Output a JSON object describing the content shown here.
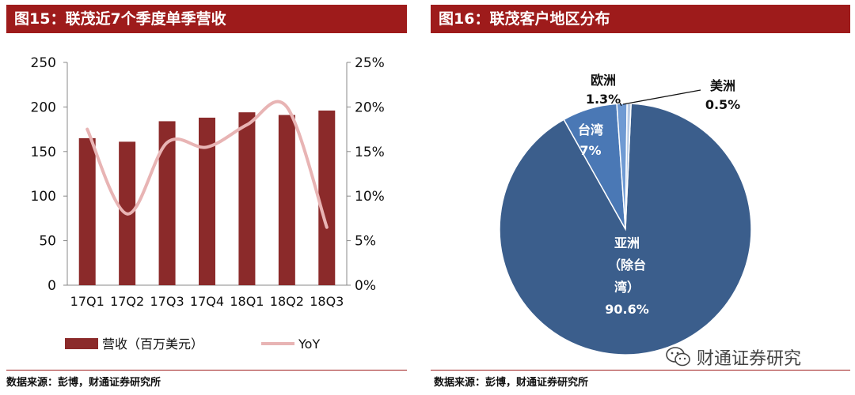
{
  "left_panel": {
    "title": "图15：联茂近7个季度单季营收",
    "source": "数据来源：彭博，财通证券研究所"
  },
  "right_panel": {
    "title": "图16：联茂客户地区分布",
    "source": "数据来源：彭博，财通证券研究所"
  },
  "watermark": {
    "text": "财通证券研究"
  },
  "colors": {
    "header": "#9e1b1b",
    "bar": "#8b2a2a",
    "line": "#e8b4b4",
    "pie_main": "#3b5e8c",
    "pie_taiwan": "#4a78b5",
    "pie_europe": "#6f9ad3",
    "pie_us": "#b8cbe6"
  },
  "chart_data": [
    {
      "type": "bar",
      "categories": [
        "17Q1",
        "17Q2",
        "17Q3",
        "17Q4",
        "18Q1",
        "18Q2",
        "18Q3"
      ],
      "series": [
        {
          "name": "营收（百万美元）",
          "type": "bar",
          "axis": "left",
          "values": [
            165,
            161,
            184,
            188,
            194,
            191,
            196
          ]
        },
        {
          "name": "YoY",
          "type": "line",
          "axis": "right",
          "values": [
            17.5,
            8.0,
            16.0,
            15.5,
            18.0,
            20.0,
            6.5
          ]
        }
      ],
      "ylim": [
        0,
        250
      ],
      "yticks": [
        "0",
        "50",
        "100",
        "150",
        "200",
        "250"
      ],
      "y2lim": [
        0,
        25
      ],
      "y2ticks": [
        "0%",
        "5%",
        "10%",
        "15%",
        "20%",
        "25%"
      ],
      "legend_position": "bottom"
    },
    {
      "type": "pie",
      "slices": [
        {
          "label": "亚洲（除台湾）",
          "label_lines": [
            "亚洲",
            "（除台",
            "湾）",
            "90.6%"
          ],
          "value": 90.6
        },
        {
          "label": "台湾",
          "label_lines": [
            "台湾",
            "7%"
          ],
          "value": 7.0
        },
        {
          "label": "欧洲",
          "label_lines": [
            "欧洲",
            "1.3%"
          ],
          "value": 1.3
        },
        {
          "label": "美洲",
          "label_lines": [
            "美洲",
            "0.5%"
          ],
          "value": 0.5
        }
      ]
    }
  ]
}
